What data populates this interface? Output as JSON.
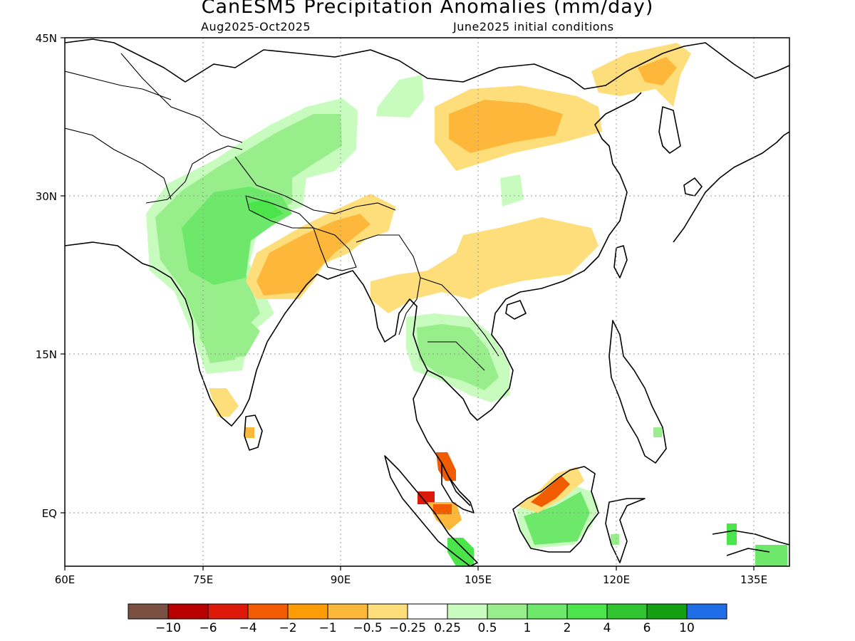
{
  "title": "CanESM5 Precipitation Anomalies (mm/day)",
  "subtitle_left": "Aug2025-Oct2025",
  "subtitle_right": "June2025 initial conditions",
  "map": {
    "lon_range": [
      60,
      140
    ],
    "lat_range": [
      -5,
      45
    ],
    "lon_ticks": [
      "60E",
      "75E",
      "90E",
      "105E",
      "120E",
      "135E"
    ],
    "lat_ticks": [
      "45N",
      "30N",
      "15N",
      "EQ"
    ],
    "grid": true
  },
  "colorbar": {
    "colors": [
      "#7a5043",
      "#b80000",
      "#dd1a0a",
      "#f25c00",
      "#fd9c06",
      "#fdb83b",
      "#fede7a",
      "#ffffff",
      "#c8fcbe",
      "#98ee8a",
      "#6de86a",
      "#4be54b",
      "#30c430",
      "#12a012",
      "#1f6ee8"
    ],
    "labels": [
      "-10",
      "-6",
      "-4",
      "-2",
      "-1",
      "-0.5",
      "-0.25",
      "0.25",
      "0.5",
      "1",
      "2",
      "4",
      "6",
      "10"
    ]
  }
}
